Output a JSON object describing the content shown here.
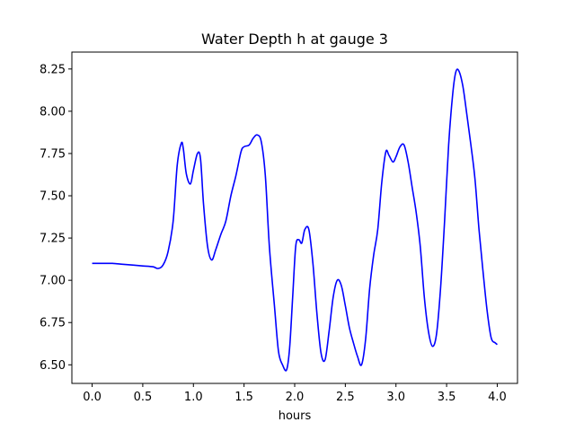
{
  "chart_data": {
    "type": "line",
    "title": "Water Depth h at gauge 3",
    "xlabel": "hours",
    "ylabel": "",
    "xlim": [
      -0.2,
      4.2
    ],
    "ylim": [
      6.39,
      8.35
    ],
    "xticks": [
      0.0,
      0.5,
      1.0,
      1.5,
      2.0,
      2.5,
      3.0,
      3.5,
      4.0
    ],
    "xtick_labels": [
      "0.0",
      "0.5",
      "1.0",
      "1.5",
      "2.0",
      "2.5",
      "3.0",
      "3.5",
      "4.0"
    ],
    "yticks": [
      6.5,
      6.75,
      7.0,
      7.25,
      7.5,
      7.75,
      8.0,
      8.25
    ],
    "ytick_labels": [
      "6.50",
      "6.75",
      "7.00",
      "7.25",
      "7.50",
      "7.75",
      "8.00",
      "8.25"
    ],
    "grid": false,
    "series": [
      {
        "color": "#0000ff",
        "x": [
          0.0,
          0.1,
          0.2,
          0.3,
          0.4,
          0.5,
          0.6,
          0.65,
          0.7,
          0.75,
          0.8,
          0.84,
          0.88,
          0.9,
          0.93,
          0.97,
          1.0,
          1.04,
          1.07,
          1.1,
          1.14,
          1.18,
          1.22,
          1.27,
          1.32,
          1.37,
          1.42,
          1.47,
          1.5,
          1.55,
          1.59,
          1.63,
          1.67,
          1.71,
          1.75,
          1.8,
          1.84,
          1.88,
          1.92,
          1.95,
          1.98,
          2.01,
          2.04,
          2.07,
          2.1,
          2.14,
          2.18,
          2.22,
          2.26,
          2.3,
          2.34,
          2.38,
          2.42,
          2.46,
          2.5,
          2.54,
          2.58,
          2.62,
          2.66,
          2.7,
          2.74,
          2.78,
          2.82,
          2.86,
          2.9,
          2.93,
          2.97,
          3.0,
          3.04,
          3.08,
          3.12,
          3.16,
          3.2,
          3.24,
          3.28,
          3.32,
          3.36,
          3.4,
          3.44,
          3.48,
          3.52,
          3.56,
          3.59,
          3.62,
          3.66,
          3.7,
          3.74,
          3.78,
          3.82,
          3.86,
          3.9,
          3.94,
          3.98,
          4.0
        ],
        "y": [
          7.1,
          7.1,
          7.1,
          7.095,
          7.09,
          7.085,
          7.08,
          7.07,
          7.09,
          7.17,
          7.35,
          7.68,
          7.81,
          7.78,
          7.63,
          7.57,
          7.65,
          7.75,
          7.72,
          7.45,
          7.2,
          7.12,
          7.18,
          7.27,
          7.35,
          7.5,
          7.62,
          7.76,
          7.79,
          7.8,
          7.84,
          7.86,
          7.82,
          7.62,
          7.2,
          6.85,
          6.58,
          6.5,
          6.47,
          6.6,
          6.9,
          7.2,
          7.24,
          7.22,
          7.3,
          7.3,
          7.1,
          6.8,
          6.57,
          6.53,
          6.7,
          6.9,
          7.0,
          6.97,
          6.85,
          6.72,
          6.63,
          6.55,
          6.5,
          6.65,
          6.95,
          7.15,
          7.3,
          7.58,
          7.76,
          7.74,
          7.7,
          7.73,
          7.79,
          7.8,
          7.7,
          7.55,
          7.4,
          7.2,
          6.9,
          6.7,
          6.61,
          6.68,
          6.95,
          7.35,
          7.8,
          8.1,
          8.23,
          8.24,
          8.15,
          7.98,
          7.8,
          7.6,
          7.3,
          7.05,
          6.82,
          6.66,
          6.63,
          6.62
        ]
      }
    ]
  }
}
